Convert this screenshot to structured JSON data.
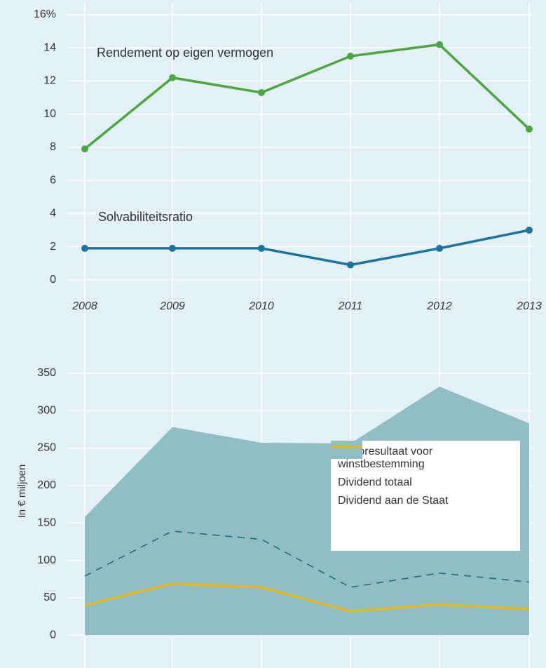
{
  "chart_data": [
    {
      "type": "line",
      "categories": [
        "2008",
        "2009",
        "2010",
        "2011",
        "2012",
        "2013"
      ],
      "series": [
        {
          "name": "Rendement op eigen vermogen",
          "color": "#4aa83c",
          "values": [
            7.9,
            12.2,
            11.3,
            13.5,
            14.2,
            9.1
          ]
        },
        {
          "name": "Solvabiliteitsratio",
          "color": "#1a74a0",
          "values": [
            1.9,
            1.9,
            1.9,
            0.9,
            1.9,
            3.0
          ]
        }
      ],
      "ylim": [
        -2,
        16
      ],
      "yticks": [
        0,
        2,
        4,
        6,
        8,
        10,
        12,
        14,
        {
          "value": 16,
          "label": "16%"
        }
      ],
      "grid": true
    },
    {
      "type": "area",
      "y_label": "In € miljoen",
      "series": [
        {
          "name": "Nettoresultaat voor winstbestemming",
          "color": "#8fbfc4",
          "style": "area",
          "values": [
            158,
            278,
            257,
            256,
            332,
            283
          ]
        },
        {
          "name": "Dividend totaal",
          "color": "#1f6f80",
          "style": "dashed",
          "values": [
            79,
            139,
            128,
            64,
            83,
            71
          ]
        },
        {
          "name": "Dividend aan de Staat",
          "color": "#f2b705",
          "style": "solid",
          "values": [
            40,
            69,
            64,
            32,
            41,
            35
          ]
        }
      ],
      "ylim": [
        -40,
        420
      ],
      "yticks": [
        0,
        50,
        100,
        150,
        200,
        250,
        300,
        350
      ],
      "grid": true,
      "legend": "center right"
    }
  ]
}
